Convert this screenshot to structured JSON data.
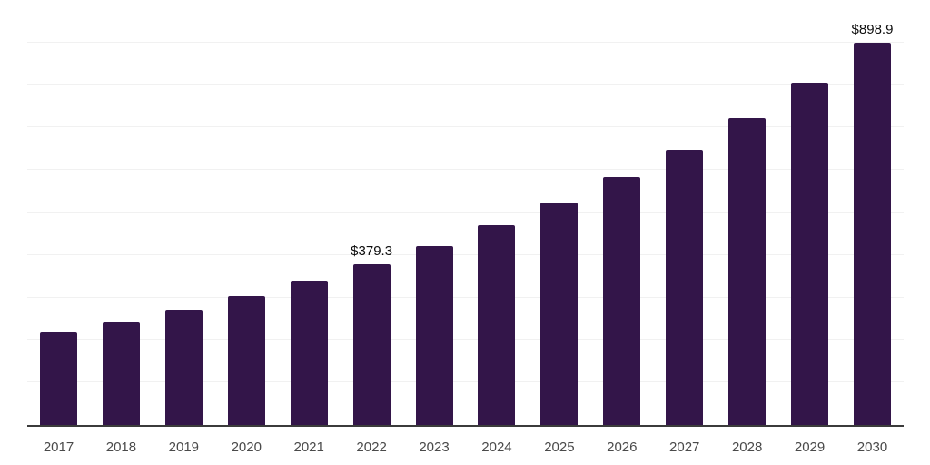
{
  "chart_data": {
    "type": "bar",
    "title": "",
    "xlabel": "",
    "ylabel": "",
    "categories": [
      "2017",
      "2018",
      "2019",
      "2020",
      "2021",
      "2022",
      "2023",
      "2024",
      "2025",
      "2026",
      "2027",
      "2028",
      "2029",
      "2030"
    ],
    "values": [
      218,
      241,
      272,
      303,
      340,
      379.3,
      422,
      470.5,
      524,
      584,
      648,
      723,
      806,
      898.9
    ],
    "data_labels": [
      "",
      "",
      "",
      "",
      "",
      "$379.3",
      "",
      "",
      "",
      "",
      "",
      "",
      "",
      "$898.9"
    ],
    "ylim": [
      0,
      1000
    ],
    "gridline_step": 100,
    "grid": true,
    "legend": "none",
    "y_tick_labels_visible": false
  },
  "style": {
    "bar_color": "#331549",
    "gridline_color": "#f1f1f1",
    "axis_color": "#3b3b3b",
    "data_label_color": "#0e0e0e",
    "tick_label_color": "#4a4a4a",
    "background": "#ffffff"
  }
}
